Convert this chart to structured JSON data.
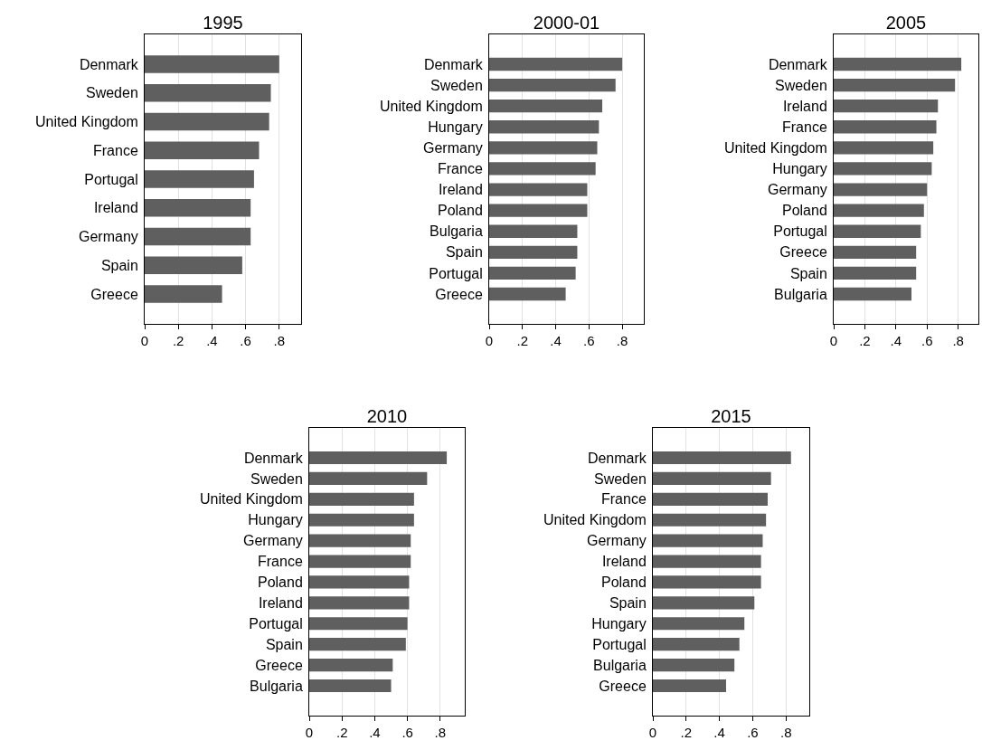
{
  "chart_data": [
    {
      "type": "bar",
      "orientation": "horizontal",
      "title": "1995",
      "categories": [
        "Denmark",
        "Sweden",
        "United Kingdom",
        "France",
        "Portugal",
        "Ireland",
        "Germany",
        "Spain",
        "Greece"
      ],
      "values": [
        0.8,
        0.75,
        0.74,
        0.68,
        0.65,
        0.63,
        0.63,
        0.58,
        0.46
      ],
      "color": "#5f5f5f",
      "xlim": [
        0,
        0.93
      ],
      "xticks": [
        {
          "value": 0,
          "label": "0"
        },
        {
          "value": 0.2,
          "label": ".2"
        },
        {
          "value": 0.4,
          "label": ".4"
        },
        {
          "value": 0.6,
          "label": ".6"
        },
        {
          "value": 0.8,
          "label": ".8"
        }
      ],
      "grid": "x"
    },
    {
      "type": "bar",
      "orientation": "horizontal",
      "title": "2000-01",
      "categories": [
        "Denmark",
        "Sweden",
        "United Kingdom",
        "Hungary",
        "Germany",
        "France",
        "Ireland",
        "Poland",
        "Bulgaria",
        "Spain",
        "Portugal",
        "Greece"
      ],
      "values": [
        0.8,
        0.76,
        0.68,
        0.66,
        0.65,
        0.64,
        0.59,
        0.59,
        0.53,
        0.53,
        0.52,
        0.46
      ],
      "color": "#5f5f5f",
      "xlim": [
        0,
        0.93
      ],
      "xticks": [
        {
          "value": 0,
          "label": "0"
        },
        {
          "value": 0.2,
          "label": ".2"
        },
        {
          "value": 0.4,
          "label": ".4"
        },
        {
          "value": 0.6,
          "label": ".6"
        },
        {
          "value": 0.8,
          "label": ".8"
        }
      ],
      "grid": "x"
    },
    {
      "type": "bar",
      "orientation": "horizontal",
      "title": "2005",
      "categories": [
        "Denmark",
        "Sweden",
        "Ireland",
        "France",
        "United Kingdom",
        "Hungary",
        "Germany",
        "Poland",
        "Portugal",
        "Greece",
        "Spain",
        "Bulgaria"
      ],
      "values": [
        0.82,
        0.78,
        0.67,
        0.66,
        0.64,
        0.63,
        0.6,
        0.58,
        0.56,
        0.53,
        0.53,
        0.5
      ],
      "color": "#5f5f5f",
      "xlim": [
        0,
        0.93
      ],
      "xticks": [
        {
          "value": 0,
          "label": "0"
        },
        {
          "value": 0.2,
          "label": ".2"
        },
        {
          "value": 0.4,
          "label": ".4"
        },
        {
          "value": 0.6,
          "label": ".6"
        },
        {
          "value": 0.8,
          "label": ".8"
        }
      ],
      "grid": "x"
    },
    {
      "type": "bar",
      "orientation": "horizontal",
      "title": "2010",
      "categories": [
        "Denmark",
        "Sweden",
        "United Kingdom",
        "Hungary",
        "Germany",
        "France",
        "Poland",
        "Ireland",
        "Portugal",
        "Spain",
        "Greece",
        "Bulgaria"
      ],
      "values": [
        0.84,
        0.72,
        0.64,
        0.64,
        0.62,
        0.62,
        0.61,
        0.61,
        0.6,
        0.59,
        0.51,
        0.5
      ],
      "color": "#5f5f5f",
      "xlim": [
        0,
        0.95
      ],
      "xticks": [
        {
          "value": 0,
          "label": "0"
        },
        {
          "value": 0.2,
          "label": ".2"
        },
        {
          "value": 0.4,
          "label": ".4"
        },
        {
          "value": 0.6,
          "label": ".6"
        },
        {
          "value": 0.8,
          "label": ".8"
        }
      ],
      "grid": "x"
    },
    {
      "type": "bar",
      "orientation": "horizontal",
      "title": "2015",
      "categories": [
        "Denmark",
        "Sweden",
        "France",
        "United Kingdom",
        "Germany",
        "Ireland",
        "Poland",
        "Spain",
        "Hungary",
        "Portugal",
        "Bulgaria",
        "Greece"
      ],
      "values": [
        0.83,
        0.71,
        0.69,
        0.68,
        0.66,
        0.65,
        0.65,
        0.61,
        0.55,
        0.52,
        0.49,
        0.44
      ],
      "color": "#5f5f5f",
      "xlim": [
        0,
        0.94
      ],
      "xticks": [
        {
          "value": 0,
          "label": "0"
        },
        {
          "value": 0.2,
          "label": ".2"
        },
        {
          "value": 0.4,
          "label": ".4"
        },
        {
          "value": 0.6,
          "label": ".6"
        },
        {
          "value": 0.8,
          "label": ".8"
        }
      ],
      "grid": "x"
    }
  ]
}
